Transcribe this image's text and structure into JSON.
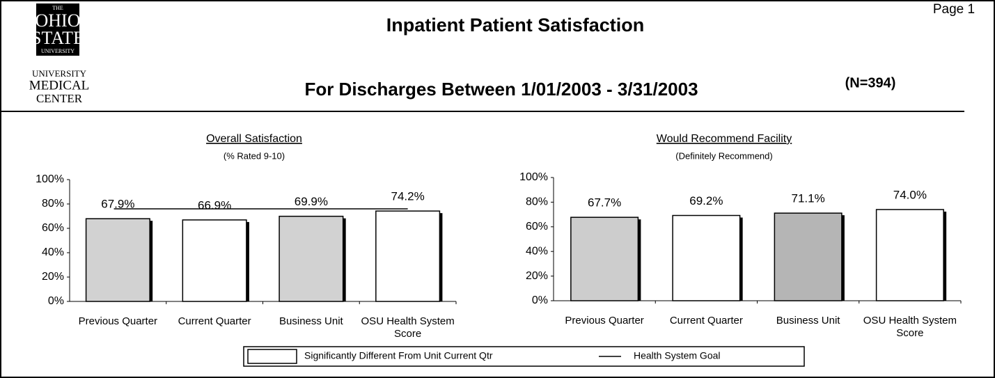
{
  "header": {
    "logo_top": [
      "THE",
      "OHIO",
      "STATE",
      "UNIVERSITY"
    ],
    "logo_bottom": [
      "UNIVERSITY",
      "MEDICAL",
      "CENTER"
    ],
    "title": "Inpatient Patient Satisfaction",
    "subtitle": "For Discharges Between 1/01/2003 - 3/31/2003",
    "n": "(N=394)",
    "page": "Page 1"
  },
  "legend": {
    "box": "Significantly Different From Unit Current  Qtr",
    "line": "Health System Goal"
  },
  "chart_data": [
    {
      "type": "bar",
      "title": "Overall Satisfaction",
      "subtitle": "(% Rated 9-10)",
      "categories": [
        "Previous Quarter",
        "Current Quarter",
        "Business Unit",
        "OSU Health System Score"
      ],
      "values": [
        67.9,
        66.9,
        69.9,
        74.2
      ],
      "value_labels": [
        "67.9%",
        "66.9%",
        "69.9%",
        "74.2%"
      ],
      "colors": [
        "#d2d2d2",
        "#ffffff",
        "#d2d2d2",
        "#ffffff"
      ],
      "goal": 76,
      "ylim": [
        0,
        100
      ],
      "yticks": [
        {
          "value": 0,
          "label": "0%"
        },
        {
          "value": 20,
          "label": "20%"
        },
        {
          "value": 40,
          "label": "40%"
        },
        {
          "value": 60,
          "label": "60%"
        },
        {
          "value": 80,
          "label": "80%"
        },
        {
          "value": 100,
          "label": "100%"
        }
      ]
    },
    {
      "type": "bar",
      "title": "Would Recommend Facility",
      "subtitle": "(Definitely Recommend)",
      "categories": [
        "Previous Quarter",
        "Current Quarter",
        "Business Unit",
        "OSU Health System Score"
      ],
      "values": [
        67.7,
        69.2,
        71.1,
        74.0
      ],
      "value_labels": [
        "67.7%",
        "69.2%",
        "71.1%",
        "74.0%"
      ],
      "colors": [
        "#cdcdcd",
        "#ffffff",
        "#b5b5b5",
        "#ffffff"
      ],
      "ylim": [
        0,
        100
      ],
      "yticks": [
        {
          "value": 0,
          "label": "0%"
        },
        {
          "value": 20,
          "label": "20%"
        },
        {
          "value": 40,
          "label": "40%"
        },
        {
          "value": 60,
          "label": "60%"
        },
        {
          "value": 80,
          "label": "80%"
        },
        {
          "value": 100,
          "label": "100%"
        }
      ]
    }
  ]
}
